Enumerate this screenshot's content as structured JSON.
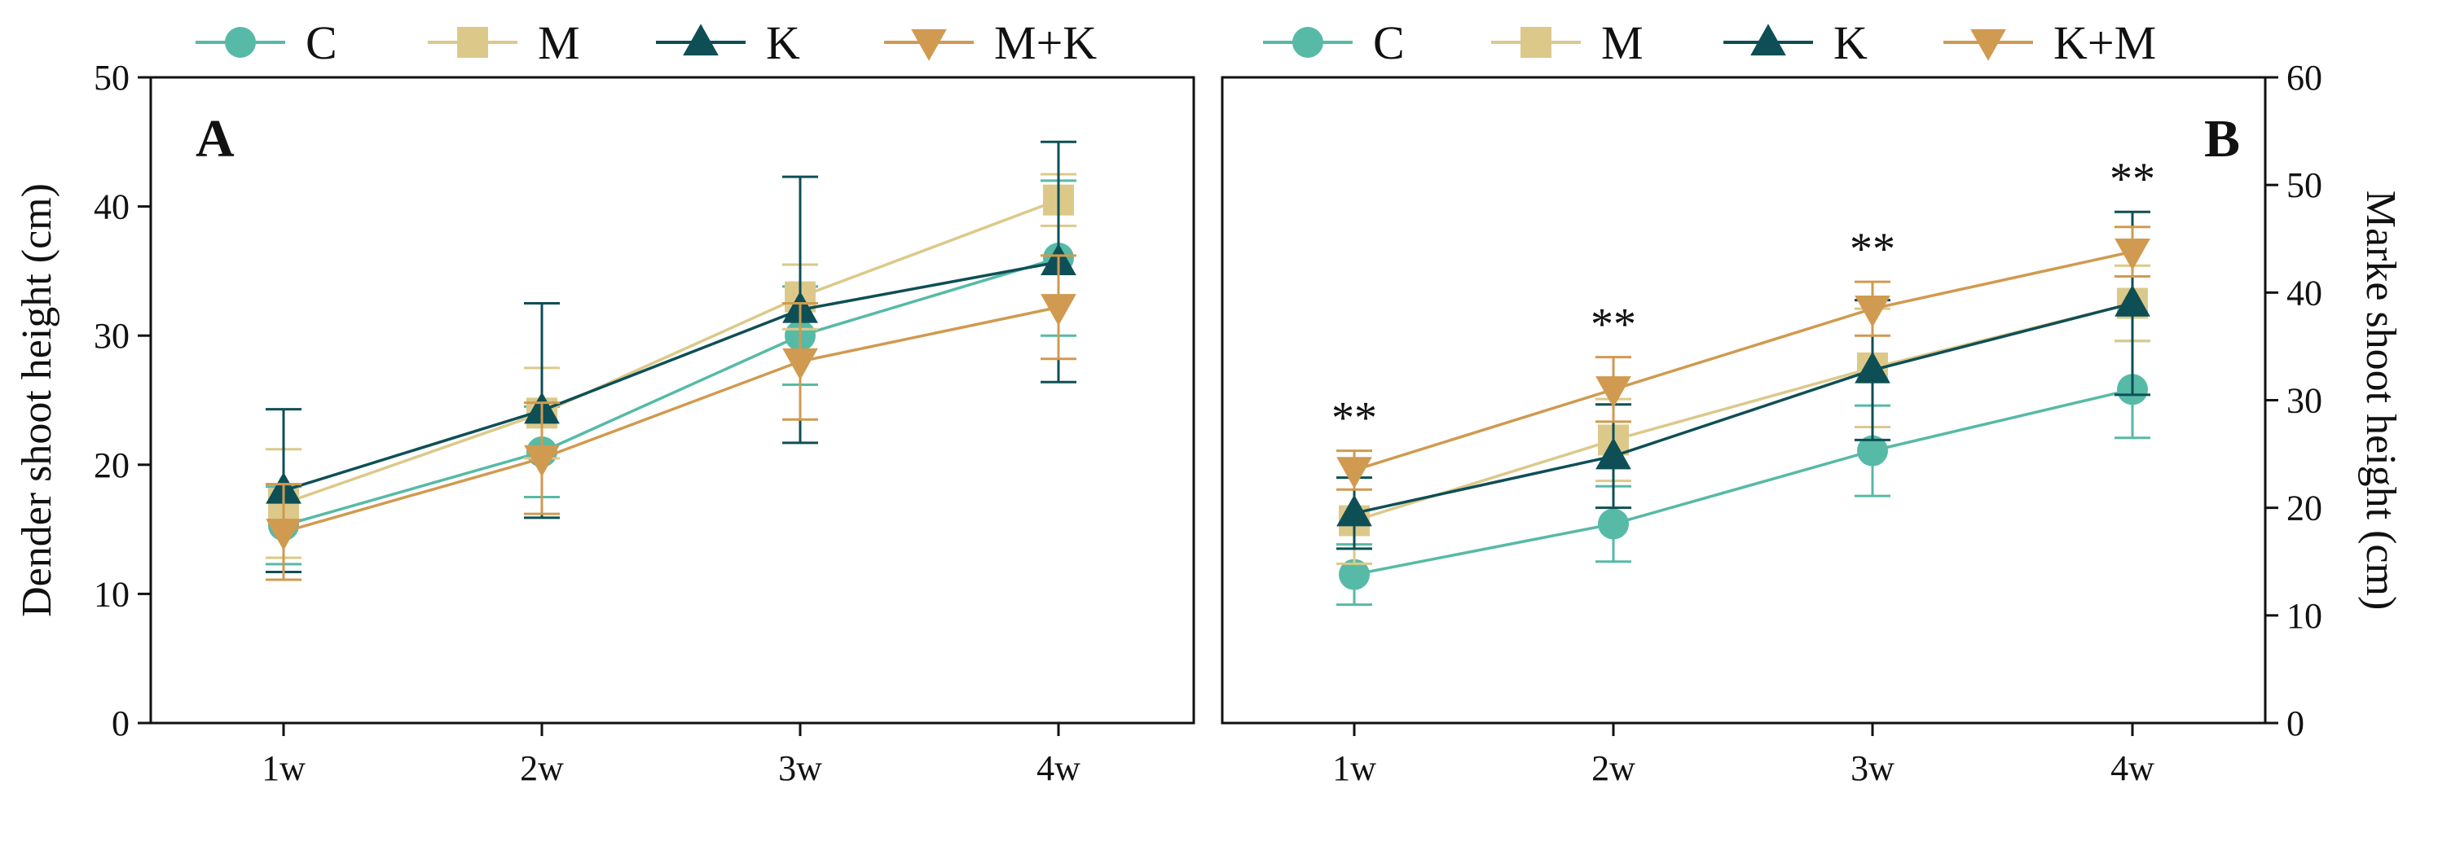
{
  "figure": {
    "panels": [
      {
        "panel_label": "A",
        "legend": [
          "C",
          "M",
          "K",
          "M+K"
        ],
        "ylabel": "Dender shoot height (cm)"
      },
      {
        "panel_label": "B",
        "legend": [
          "C",
          "M",
          "K",
          "K+M"
        ],
        "ylabel": "Marke shoot height (cm)"
      }
    ]
  },
  "chart_data": [
    {
      "type": "line",
      "panel_label": "A",
      "categories": [
        "1w",
        "2w",
        "3w",
        "4w"
      ],
      "ylabel": "Dender shoot height (cm)",
      "xlabel": "",
      "ylim": [
        0,
        50
      ],
      "yticks": [
        0,
        10,
        20,
        30,
        40,
        50
      ],
      "y_axis_side": "left",
      "legend_position": "top",
      "grid": false,
      "series": [
        {
          "name": "C",
          "marker": "circle",
          "color": "#56BAA6",
          "values": [
            15.3,
            21.0,
            30.0,
            36.0
          ],
          "error": [
            3.0,
            3.5,
            3.8,
            6.0
          ]
        },
        {
          "name": "M",
          "marker": "square",
          "color": "#DCC98A",
          "values": [
            17.0,
            24.0,
            33.0,
            40.5
          ],
          "error": [
            4.2,
            3.5,
            2.5,
            2.0
          ]
        },
        {
          "name": "K",
          "marker": "triangle-up",
          "color": "#0E4F56",
          "values": [
            18.0,
            24.2,
            32.0,
            35.7
          ],
          "error": [
            6.3,
            8.3,
            10.3,
            9.3
          ]
        },
        {
          "name": "M+K",
          "marker": "triangle-down",
          "color": "#D09A50",
          "values": [
            14.8,
            20.5,
            28.0,
            32.2
          ],
          "error": [
            3.7,
            4.3,
            4.5,
            4.0
          ]
        }
      ]
    },
    {
      "type": "line",
      "panel_label": "B",
      "categories": [
        "1w",
        "2w",
        "3w",
        "4w"
      ],
      "ylabel": "Marke shoot height (cm)",
      "xlabel": "",
      "ylim": [
        0,
        60
      ],
      "yticks": [
        0,
        10,
        20,
        30,
        40,
        50,
        60
      ],
      "y_axis_side": "right",
      "legend_position": "top",
      "grid": false,
      "annotations": [
        "**",
        "**",
        "**",
        "**"
      ],
      "series": [
        {
          "name": "C",
          "marker": "circle",
          "color": "#56BAA6",
          "values": [
            13.8,
            18.5,
            25.3,
            31.0
          ],
          "error": [
            2.8,
            3.5,
            4.2,
            4.5
          ]
        },
        {
          "name": "M",
          "marker": "square",
          "color": "#DCC98A",
          "values": [
            18.8,
            26.3,
            33.0,
            39.0
          ],
          "error": [
            4.0,
            3.8,
            5.5,
            3.5
          ]
        },
        {
          "name": "K",
          "marker": "triangle-up",
          "color": "#0E4F56",
          "values": [
            19.5,
            24.8,
            32.8,
            39.0
          ],
          "error": [
            3.3,
            4.8,
            6.5,
            8.5
          ]
        },
        {
          "name": "K+M",
          "marker": "triangle-down",
          "color": "#D09A50",
          "values": [
            23.5,
            31.0,
            38.5,
            43.8
          ],
          "error": [
            1.8,
            3.0,
            2.5,
            2.3
          ]
        }
      ]
    }
  ]
}
